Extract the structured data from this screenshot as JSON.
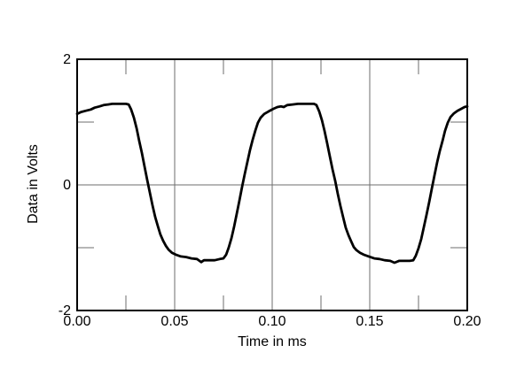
{
  "figure": {
    "background": "#ffffff"
  },
  "chart_data": {
    "type": "line",
    "title": "",
    "xlabel": "Time in ms",
    "ylabel": "Data in Volts",
    "xlim": [
      0,
      0.2
    ],
    "ylim": [
      -2,
      2
    ],
    "grid": "major-only",
    "legend": null,
    "x_major_ticks": [
      {
        "v": 0.0,
        "label": "0.00"
      },
      {
        "v": 0.05,
        "label": "0.05"
      },
      {
        "v": 0.1,
        "label": "0.10"
      },
      {
        "v": 0.15,
        "label": "0.15"
      },
      {
        "v": 0.2,
        "label": "0.20"
      }
    ],
    "x_minor_ticks": [
      0.025,
      0.075,
      0.125,
      0.175
    ],
    "y_major_ticks": [
      {
        "v": 2,
        "label": "2"
      },
      {
        "v": 0,
        "label": "0"
      },
      {
        "v": -2,
        "label": "-2"
      }
    ],
    "y_minor_ticks": [
      1,
      -1
    ],
    "grid_x": [
      0.05,
      0.1,
      0.15
    ],
    "grid_y": [
      0
    ],
    "colors": {
      "line": "#000000",
      "grid": "#6e6e6e",
      "tick": "#6e6e6e",
      "frame": "#000000",
      "text": "#000000",
      "background": "#ffffff"
    },
    "series": [
      {
        "name": "measured-waveform",
        "points": [
          [
            0.0,
            1.13
          ],
          [
            0.002,
            1.16
          ],
          [
            0.0045,
            1.18
          ],
          [
            0.007,
            1.2
          ],
          [
            0.009,
            1.23
          ],
          [
            0.0114,
            1.25
          ],
          [
            0.0136,
            1.27
          ],
          [
            0.0159,
            1.28
          ],
          [
            0.018,
            1.29
          ],
          [
            0.0205,
            1.29
          ],
          [
            0.0227,
            1.29
          ],
          [
            0.025,
            1.29
          ],
          [
            0.0264,
            1.28
          ],
          [
            0.0277,
            1.2
          ],
          [
            0.0291,
            1.07
          ],
          [
            0.0305,
            0.9
          ],
          [
            0.0318,
            0.7
          ],
          [
            0.0332,
            0.51
          ],
          [
            0.0345,
            0.3
          ],
          [
            0.0359,
            0.08
          ],
          [
            0.0373,
            -0.13
          ],
          [
            0.0386,
            -0.32
          ],
          [
            0.04,
            -0.51
          ],
          [
            0.0414,
            -0.66
          ],
          [
            0.0427,
            -0.79
          ],
          [
            0.0441,
            -0.89
          ],
          [
            0.0455,
            -0.97
          ],
          [
            0.0468,
            -1.03
          ],
          [
            0.0486,
            -1.08
          ],
          [
            0.0505,
            -1.11
          ],
          [
            0.0532,
            -1.14
          ],
          [
            0.0559,
            -1.15
          ],
          [
            0.0586,
            -1.17
          ],
          [
            0.0614,
            -1.18
          ],
          [
            0.0636,
            -1.23
          ],
          [
            0.065,
            -1.2
          ],
          [
            0.0677,
            -1.2
          ],
          [
            0.0705,
            -1.2
          ],
          [
            0.0732,
            -1.18
          ],
          [
            0.075,
            -1.17
          ],
          [
            0.0764,
            -1.11
          ],
          [
            0.0777,
            -1.0
          ],
          [
            0.0791,
            -0.85
          ],
          [
            0.0805,
            -0.66
          ],
          [
            0.0818,
            -0.46
          ],
          [
            0.0832,
            -0.25
          ],
          [
            0.0845,
            -0.04
          ],
          [
            0.0859,
            0.17
          ],
          [
            0.0873,
            0.37
          ],
          [
            0.0886,
            0.55
          ],
          [
            0.09,
            0.72
          ],
          [
            0.0914,
            0.87
          ],
          [
            0.0927,
            0.99
          ],
          [
            0.0941,
            1.07
          ],
          [
            0.0959,
            1.13
          ],
          [
            0.0982,
            1.17
          ],
          [
            0.1005,
            1.21
          ],
          [
            0.1027,
            1.24
          ],
          [
            0.1045,
            1.25
          ],
          [
            0.1059,
            1.24
          ],
          [
            0.1077,
            1.27
          ],
          [
            0.1105,
            1.28
          ],
          [
            0.1132,
            1.29
          ],
          [
            0.1159,
            1.29
          ],
          [
            0.1186,
            1.29
          ],
          [
            0.1214,
            1.29
          ],
          [
            0.1227,
            1.27
          ],
          [
            0.1241,
            1.17
          ],
          [
            0.1255,
            1.03
          ],
          [
            0.1268,
            0.86
          ],
          [
            0.1282,
            0.66
          ],
          [
            0.1295,
            0.46
          ],
          [
            0.1309,
            0.25
          ],
          [
            0.1323,
            0.06
          ],
          [
            0.1336,
            -0.14
          ],
          [
            0.135,
            -0.34
          ],
          [
            0.1364,
            -0.52
          ],
          [
            0.1377,
            -0.68
          ],
          [
            0.1391,
            -0.8
          ],
          [
            0.1405,
            -0.9
          ],
          [
            0.1418,
            -0.99
          ],
          [
            0.1432,
            -1.04
          ],
          [
            0.145,
            -1.08
          ],
          [
            0.1468,
            -1.11
          ],
          [
            0.1495,
            -1.14
          ],
          [
            0.1523,
            -1.17
          ],
          [
            0.155,
            -1.18
          ],
          [
            0.1577,
            -1.2
          ],
          [
            0.1605,
            -1.21
          ],
          [
            0.1627,
            -1.24
          ],
          [
            0.165,
            -1.21
          ],
          [
            0.1677,
            -1.21
          ],
          [
            0.1705,
            -1.21
          ],
          [
            0.1723,
            -1.2
          ],
          [
            0.1736,
            -1.13
          ],
          [
            0.175,
            -1.01
          ],
          [
            0.1764,
            -0.86
          ],
          [
            0.1777,
            -0.68
          ],
          [
            0.1791,
            -0.48
          ],
          [
            0.1805,
            -0.27
          ],
          [
            0.1818,
            -0.06
          ],
          [
            0.1832,
            0.15
          ],
          [
            0.1845,
            0.35
          ],
          [
            0.1859,
            0.54
          ],
          [
            0.1873,
            0.7
          ],
          [
            0.1886,
            0.86
          ],
          [
            0.19,
            0.99
          ],
          [
            0.1914,
            1.08
          ],
          [
            0.1932,
            1.14
          ],
          [
            0.195,
            1.18
          ],
          [
            0.1968,
            1.21
          ],
          [
            0.1986,
            1.24
          ],
          [
            0.2,
            1.25
          ]
        ]
      }
    ]
  }
}
